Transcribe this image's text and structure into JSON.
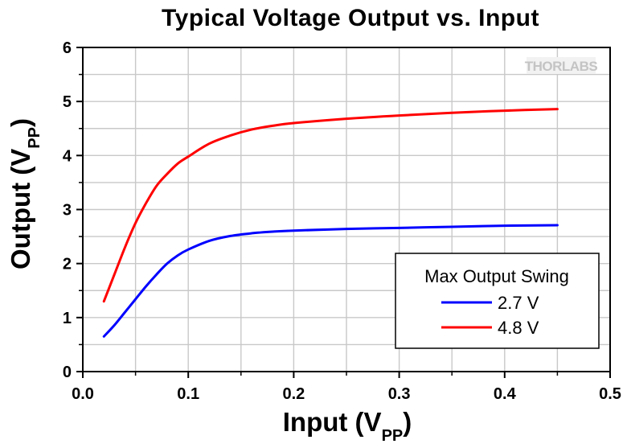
{
  "chart_data": {
    "type": "line",
    "title": "Typical Voltage Output vs. Input",
    "xlabel": {
      "main": "Input (V",
      "sub": "PP",
      "end": ")"
    },
    "ylabel": {
      "main": "Output (V",
      "sub": "PP",
      "end": ")"
    },
    "xlim": [
      0.0,
      0.5
    ],
    "ylim": [
      0,
      6
    ],
    "xticks": [
      0.0,
      0.1,
      0.2,
      0.3,
      0.4,
      0.5
    ],
    "xtick_labels": [
      "0.0",
      "0.1",
      "0.2",
      "0.3",
      "0.4",
      "0.5"
    ],
    "yticks": [
      0,
      1,
      2,
      3,
      4,
      5,
      6
    ],
    "ytick_labels": [
      "0",
      "1",
      "2",
      "3",
      "4",
      "5",
      "6"
    ],
    "grid": true,
    "legend": {
      "title": "Max Output Swing",
      "position": "bottom-right"
    },
    "series": [
      {
        "name": "2.7 V",
        "color": "#0000ff",
        "x": [
          0.02,
          0.03,
          0.04,
          0.05,
          0.06,
          0.07,
          0.08,
          0.09,
          0.1,
          0.12,
          0.14,
          0.16,
          0.18,
          0.2,
          0.25,
          0.3,
          0.35,
          0.4,
          0.45
        ],
        "y": [
          0.65,
          0.86,
          1.1,
          1.34,
          1.58,
          1.8,
          2.0,
          2.15,
          2.26,
          2.42,
          2.51,
          2.56,
          2.59,
          2.61,
          2.64,
          2.66,
          2.68,
          2.7,
          2.71
        ]
      },
      {
        "name": "4.8 V",
        "color": "#ff0000",
        "x": [
          0.02,
          0.03,
          0.04,
          0.05,
          0.06,
          0.07,
          0.08,
          0.09,
          0.1,
          0.12,
          0.14,
          0.16,
          0.18,
          0.2,
          0.25,
          0.3,
          0.35,
          0.4,
          0.45
        ],
        "y": [
          1.3,
          1.8,
          2.3,
          2.75,
          3.12,
          3.44,
          3.66,
          3.85,
          3.98,
          4.22,
          4.37,
          4.48,
          4.55,
          4.6,
          4.68,
          4.74,
          4.79,
          4.83,
          4.86
        ]
      }
    ]
  },
  "logo": {
    "text": "THORLABS"
  }
}
